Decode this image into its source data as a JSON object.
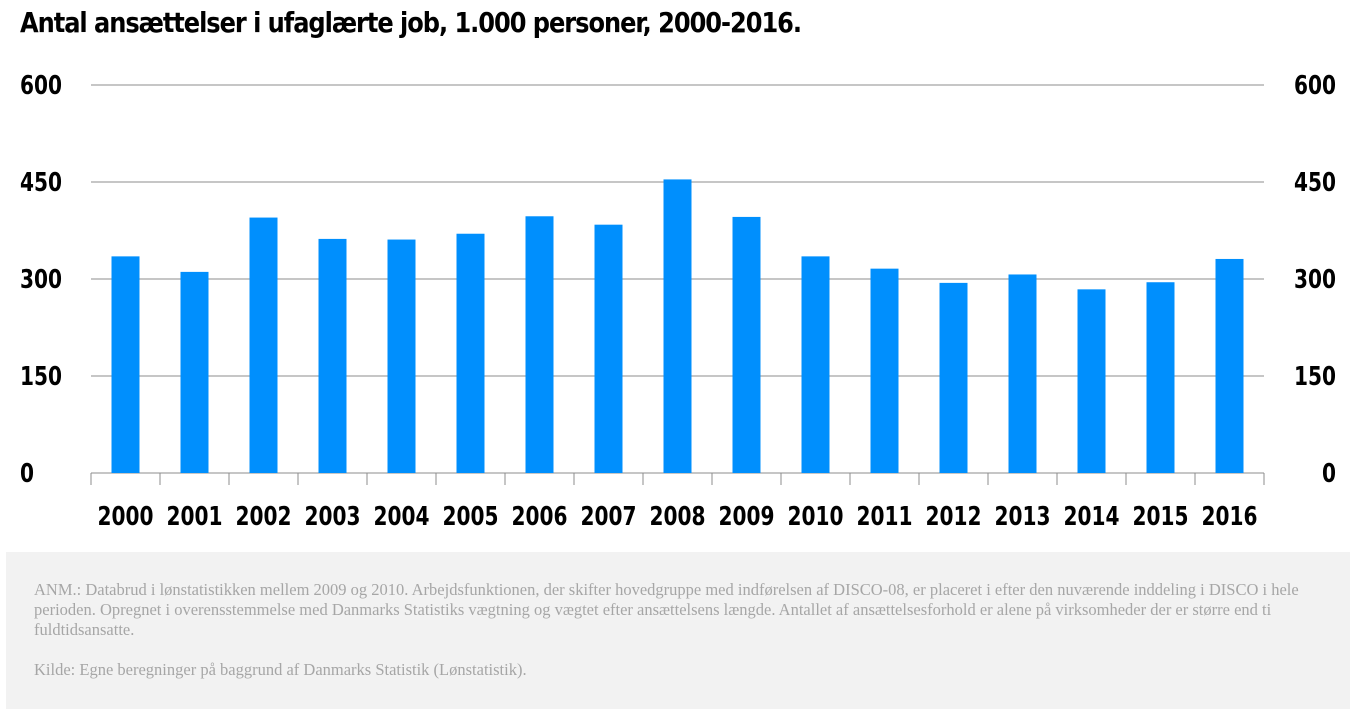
{
  "chart_data": {
    "type": "bar",
    "title": "Antal ansættelser i ufaglærte job, 1.000 personer, 2000-2016.",
    "categories": [
      "2000",
      "2001",
      "2002",
      "2003",
      "2004",
      "2005",
      "2006",
      "2007",
      "2008",
      "2009",
      "2010",
      "2011",
      "2012",
      "2013",
      "2014",
      "2015",
      "2016"
    ],
    "values": [
      335,
      311,
      395,
      362,
      361,
      370,
      397,
      384,
      454,
      396,
      335,
      316,
      294,
      307,
      284,
      295,
      331
    ],
    "ylim": [
      0,
      600
    ],
    "yticks": [
      "0",
      "150",
      "300",
      "450",
      "600"
    ],
    "grid": true,
    "bar_color": "#008ffd"
  },
  "notes": {
    "anm": "ANM.: Databrud i lønstatistikken mellem 2009 og 2010. Arbejdsfunktionen, der skifter hovedgruppe med indførelsen af DISCO-08, er placeret i efter den nuværende inddeling i DISCO i hele perioden. Opregnet i overensstemmelse med Danmarks Statistiks vægtning og vægtet efter ansættelsens længde. Antallet af ansættelsesforhold er alene på virksomheder der er større end ti fuldtidsansatte.",
    "source": "Kilde: Egne beregninger på baggrund af Danmarks Statistik (Lønstatistik)."
  }
}
